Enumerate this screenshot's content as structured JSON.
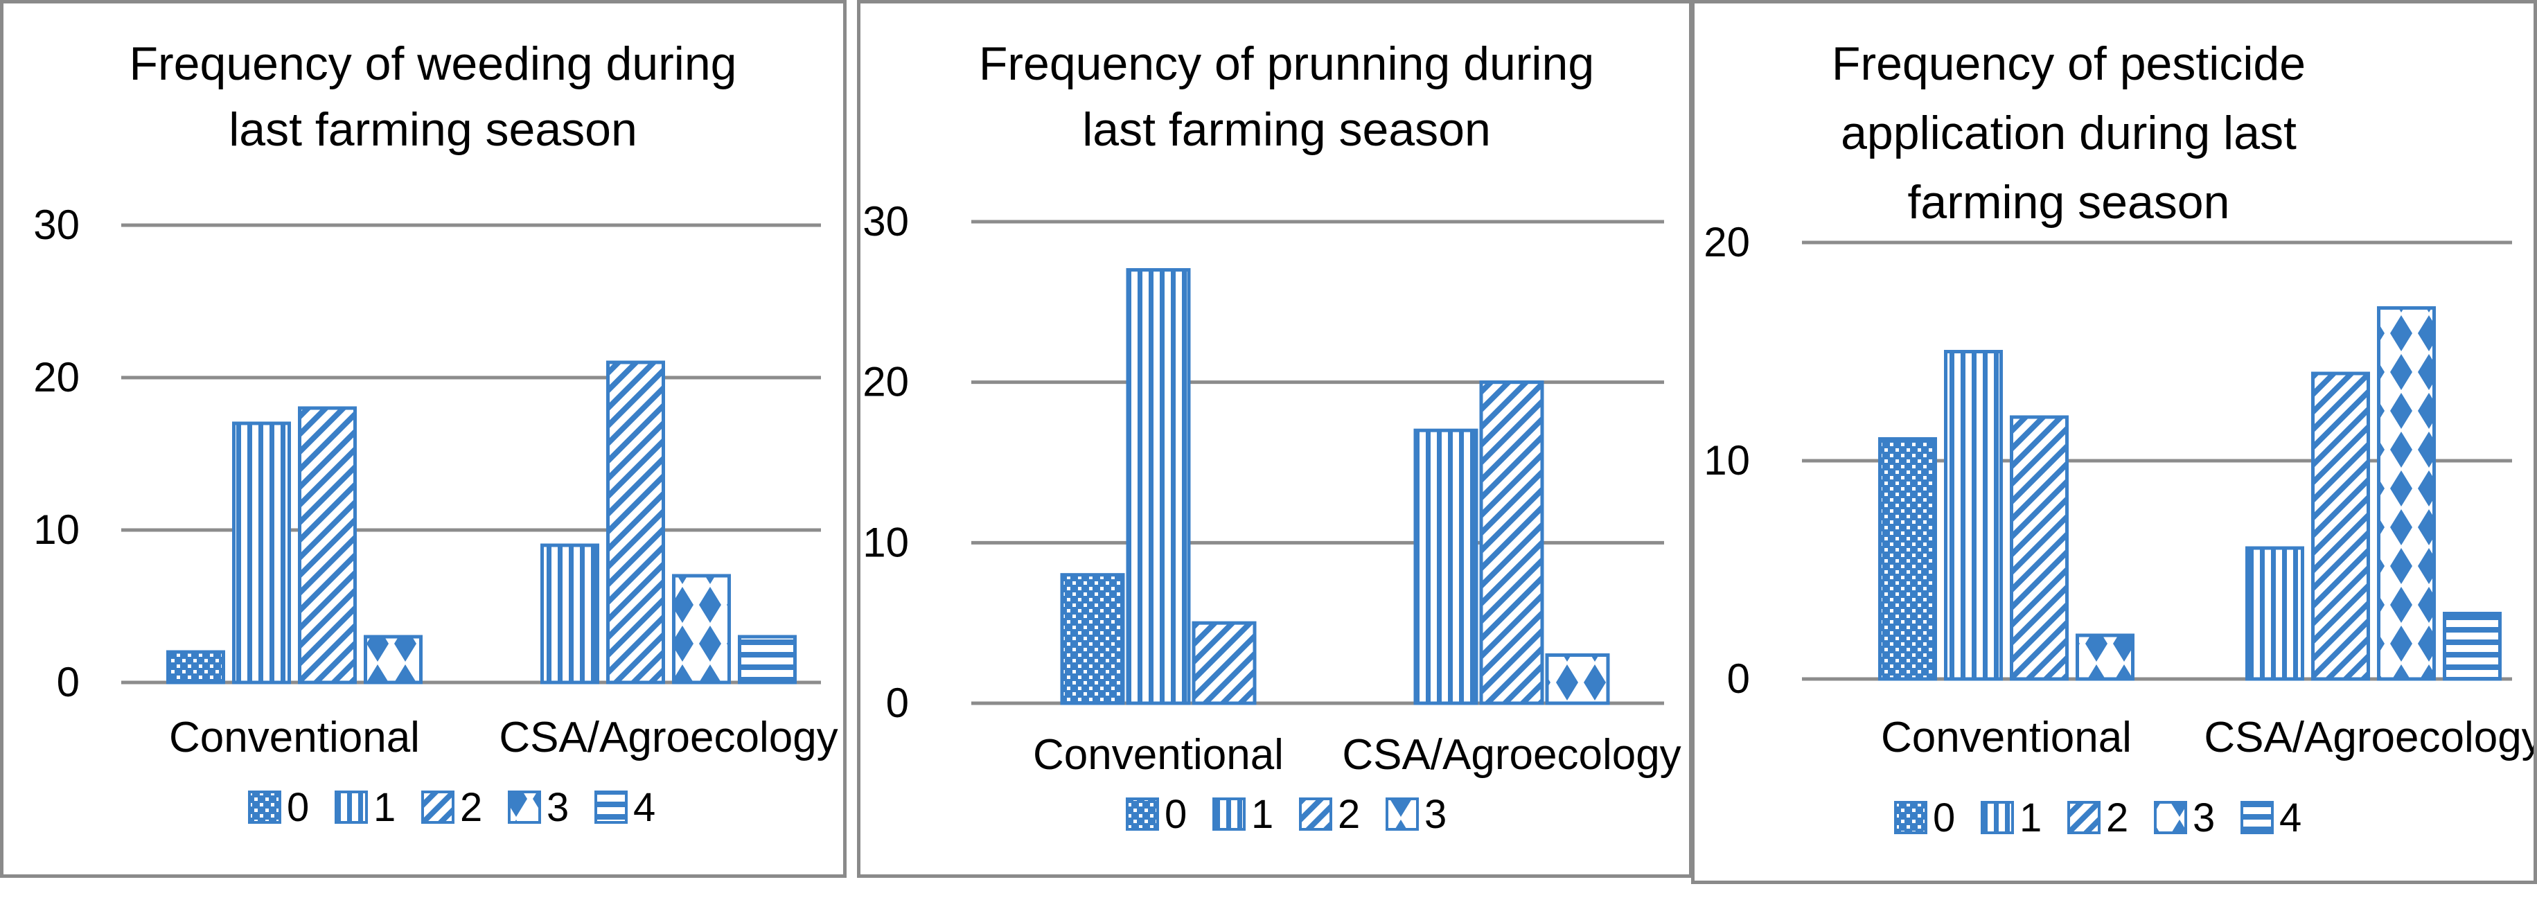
{
  "colors": {
    "bar": "#3a7fc7",
    "grid": "#8c8c8c",
    "border": "#8a8a8a"
  },
  "chart_data": [
    {
      "type": "bar",
      "title": "Frequency of weeding during last farming season",
      "title_lines": [
        "Frequency of weeding during",
        "last farming season"
      ],
      "categories": [
        "Conventional",
        "CSA/Agroecology"
      ],
      "yticks": [
        0,
        10,
        20,
        30
      ],
      "ylim": [
        0,
        30
      ],
      "grid": true,
      "legend_position": "bottom",
      "series": [
        {
          "name": "0",
          "values": [
            2,
            null
          ]
        },
        {
          "name": "1",
          "values": [
            17,
            9
          ]
        },
        {
          "name": "2",
          "values": [
            18,
            21
          ]
        },
        {
          "name": "3",
          "values": [
            3,
            7
          ]
        },
        {
          "name": "4",
          "values": [
            null,
            3
          ]
        }
      ]
    },
    {
      "type": "bar",
      "title": "Frequency of prunning during last farming season",
      "title_lines": [
        "Frequency of prunning during",
        "last farming season"
      ],
      "categories": [
        "Conventional",
        "CSA/Agroecology"
      ],
      "yticks": [
        0,
        10,
        20,
        30
      ],
      "ylim": [
        0,
        30
      ],
      "grid": true,
      "legend_position": "bottom",
      "series": [
        {
          "name": "0",
          "values": [
            8,
            null
          ]
        },
        {
          "name": "1",
          "values": [
            27,
            17
          ]
        },
        {
          "name": "2",
          "values": [
            5,
            20
          ]
        },
        {
          "name": "3",
          "values": [
            null,
            3
          ]
        }
      ]
    },
    {
      "type": "bar",
      "title": "Frequency of pesticide application during last farming season",
      "title_lines": [
        "Frequency of pesticide",
        "application during last",
        "farming season"
      ],
      "categories": [
        "Conventional",
        "CSA/Agroecology"
      ],
      "yticks": [
        0,
        10,
        20
      ],
      "ylim": [
        0,
        20
      ],
      "grid": true,
      "legend_position": "bottom",
      "series": [
        {
          "name": "0",
          "values": [
            11,
            null
          ]
        },
        {
          "name": "1",
          "values": [
            15,
            6
          ]
        },
        {
          "name": "2",
          "values": [
            12,
            14
          ]
        },
        {
          "name": "3",
          "values": [
            2,
            17
          ]
        },
        {
          "name": "4",
          "values": [
            null,
            3
          ]
        }
      ]
    }
  ]
}
